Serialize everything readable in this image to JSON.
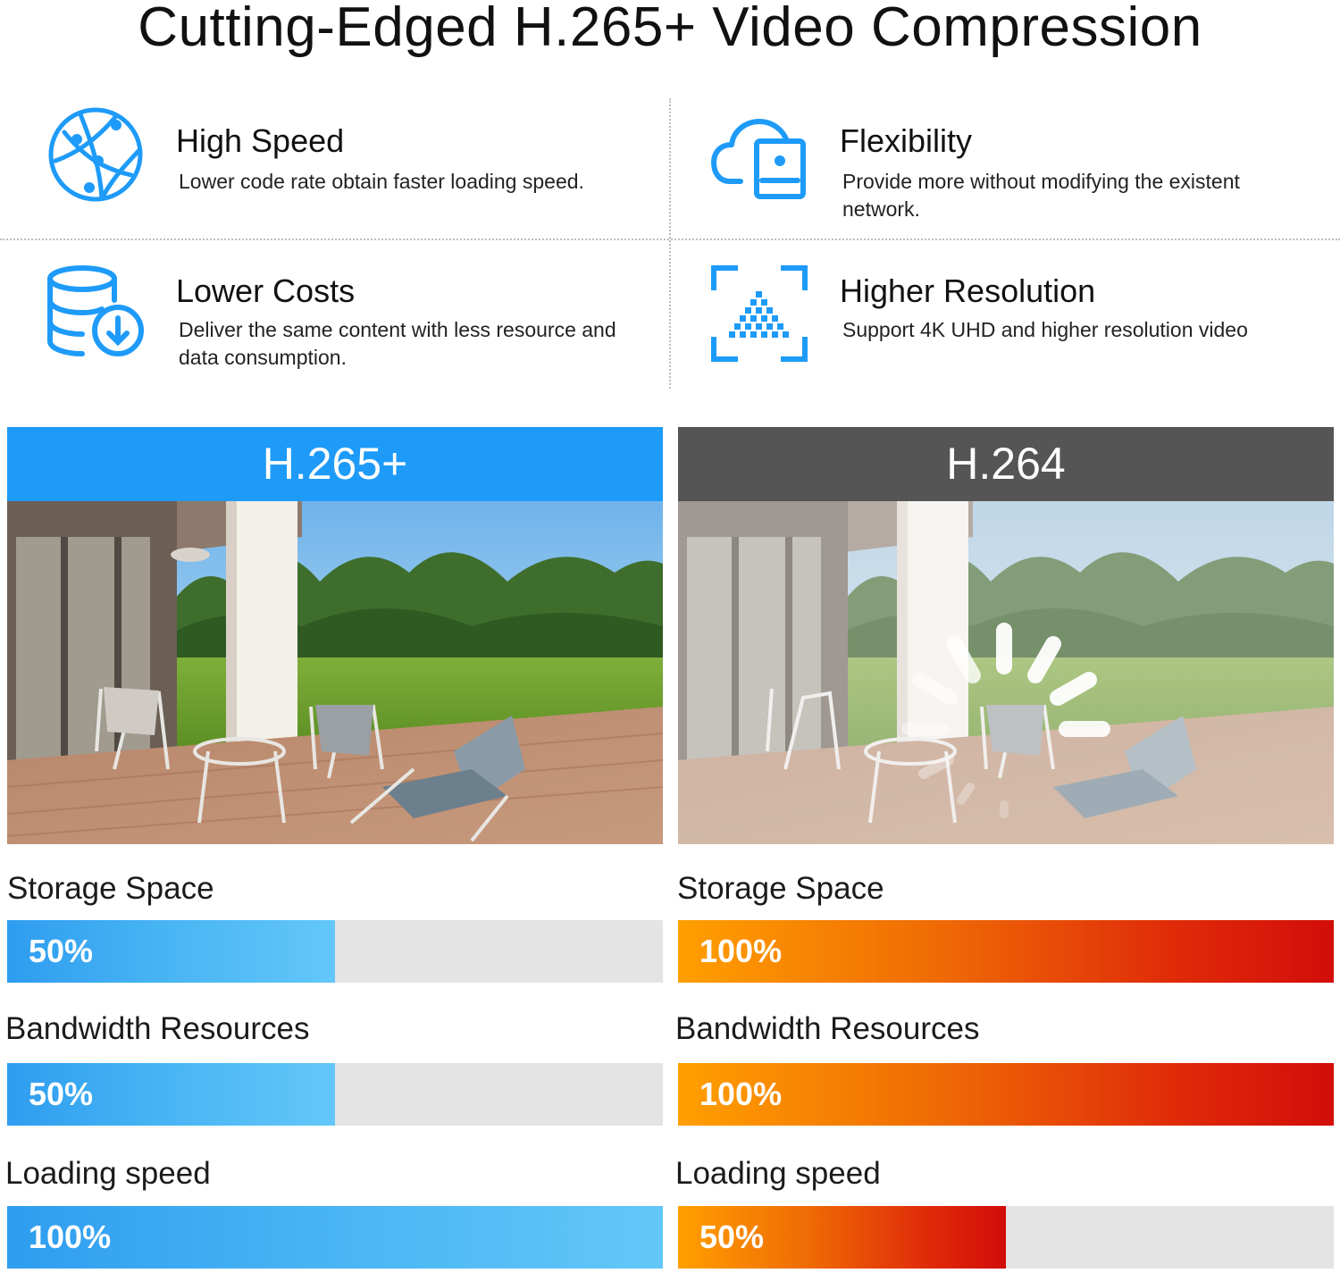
{
  "title": "Cutting-Edged H.265+ Video Compression",
  "accent_color": "#1E9BF8",
  "features": [
    {
      "icon": "globe-network-icon",
      "title": "High Speed",
      "description": "Lower code rate obtain faster loading speed."
    },
    {
      "icon": "cloud-device-icon",
      "title": "Flexibility",
      "description": "Provide more without modifying the existent network."
    },
    {
      "icon": "database-download-icon",
      "title": "Lower Costs",
      "description": "Deliver the same content with less resource and data consumption."
    },
    {
      "icon": "resolution-frame-icon",
      "title": "Higher Resolution",
      "description": "Support 4K UHD and higher resolution video"
    }
  ],
  "comparison": [
    {
      "label": "H.265+",
      "header_color": "#1E9BF8",
      "metrics": [
        {
          "label": "Storage Space",
          "value": 50,
          "text": "50%"
        },
        {
          "label": "Bandwidth Resources",
          "value": 50,
          "text": "50%"
        },
        {
          "label": "Loading speed",
          "value": 100,
          "text": "100%"
        }
      ]
    },
    {
      "label": "H.264",
      "header_color": "#555555",
      "metrics": [
        {
          "label": "Storage Space",
          "value": 100,
          "text": "100%"
        },
        {
          "label": "Bandwidth Resources",
          "value": 100,
          "text": "100%"
        },
        {
          "label": "Loading speed",
          "value": 50,
          "text": "50%"
        }
      ]
    }
  ]
}
